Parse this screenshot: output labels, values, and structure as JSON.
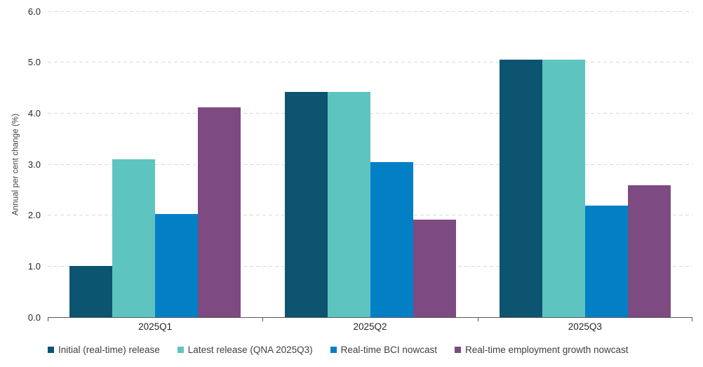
{
  "chart_data": {
    "type": "bar",
    "title": "",
    "xlabel": "",
    "ylabel": "Annual per cent change (%)",
    "ylim": [
      0,
      6.0
    ],
    "yticks": [
      "0.0",
      "1.0",
      "2.0",
      "3.0",
      "4.0",
      "5.0",
      "6.0"
    ],
    "grid": "horizontal-dashed",
    "legend_position": "bottom-left",
    "categories": [
      "2025Q1",
      "2025Q2",
      "2025Q3"
    ],
    "series": [
      {
        "name": "Initial (real-time) release",
        "color": "#0D5470",
        "values": [
          1.0,
          4.42,
          5.05
        ]
      },
      {
        "name": "Latest release (QNA 2025Q3)",
        "color": "#5EC4C0",
        "values": [
          3.1,
          4.42,
          5.05
        ]
      },
      {
        "name": "Real-time BCI nowcast",
        "color": "#0380C5",
        "values": [
          2.02,
          3.04,
          2.19
        ]
      },
      {
        "name": "Real-time employment growth nowcast",
        "color": "#7D4A82",
        "values": [
          4.11,
          1.91,
          2.59
        ]
      }
    ]
  },
  "style_colors": {
    "gridline": "#D9D9D9",
    "axis_line": "#595959",
    "tick_text": "#262626",
    "label_text": "#404040"
  }
}
